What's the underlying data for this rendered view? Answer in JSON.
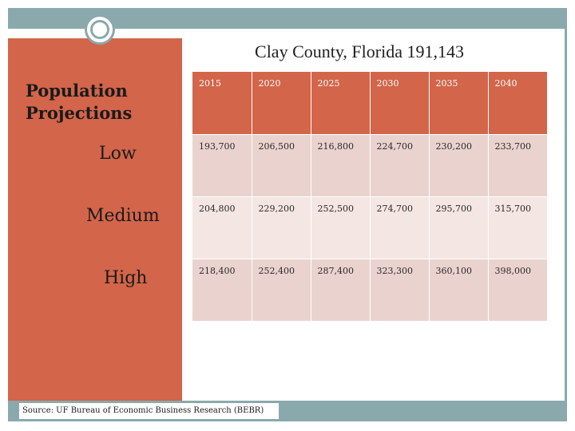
{
  "slide": {
    "title": "Clay County, Florida 191,143",
    "heading": [
      "Population",
      "Projections"
    ],
    "source": "Source: UF Bureau of Economic Business Research (BEBR)"
  },
  "chart_data": {
    "type": "table",
    "title": "Clay County, Florida 191,143",
    "columns": [
      "2015",
      "2020",
      "2025",
      "2030",
      "2035",
      "2040"
    ],
    "rows": [
      {
        "label": "Low",
        "values": [
          "193,700",
          "206,500",
          "216,800",
          "224,700",
          "230,200",
          "233,700"
        ]
      },
      {
        "label": "Medium",
        "values": [
          "204,800",
          "229,200",
          "252,500",
          "274,700",
          "295,700",
          "315,700"
        ]
      },
      {
        "label": "High",
        "values": [
          "218,400",
          "252,400",
          "287,400",
          "323,300",
          "360,100",
          "398,000"
        ]
      }
    ]
  },
  "colors": {
    "accent": "#d2654a",
    "band": "#8aa9ad",
    "row_dark": "#ead3ce",
    "row_light": "#f4e6e3"
  }
}
